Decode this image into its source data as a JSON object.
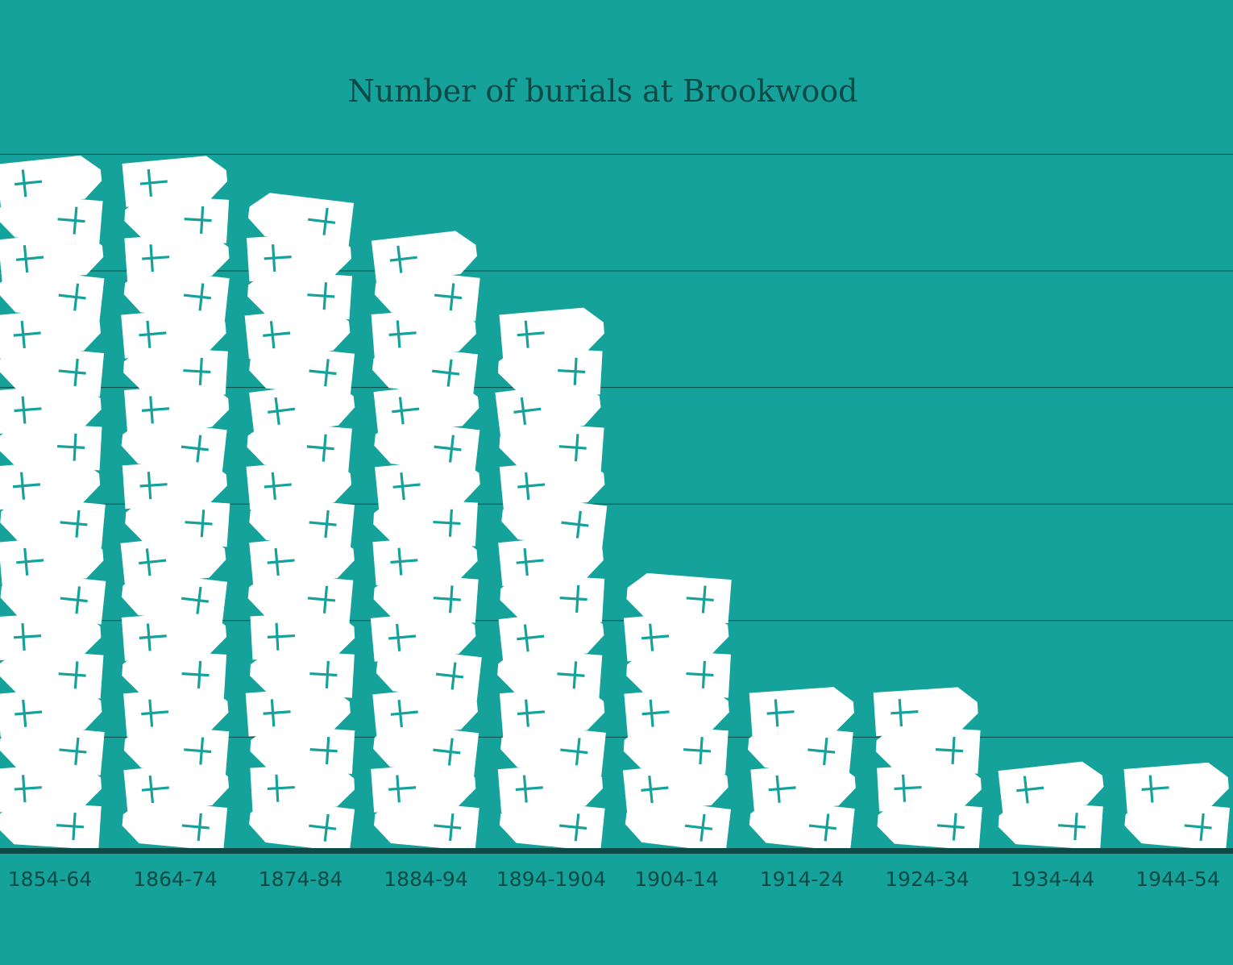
{
  "colors": {
    "background": "#14a29a",
    "text": "#0c4a45",
    "grid": "#0c4a45",
    "baseline": "#0d4c46",
    "coffin": "#ffffff",
    "cross": "#14a29a"
  },
  "icon": "coffin-icon",
  "chart_data": {
    "type": "bar",
    "title": "Number of burials at Brookwood",
    "xlabel": "",
    "ylabel": "",
    "categories": [
      "1854-64",
      "1864-74",
      "1874-84",
      "1884-94",
      "1894-1904",
      "1904-14",
      "1914-24",
      "1924-34",
      "1934-44",
      "1944-54"
    ],
    "values": [
      18,
      18,
      17,
      16,
      14,
      7,
      4,
      4,
      2,
      2
    ],
    "unit_note": "each coffin icon represents one unit",
    "grid": true,
    "grid_lines": 6,
    "legend": "none"
  }
}
